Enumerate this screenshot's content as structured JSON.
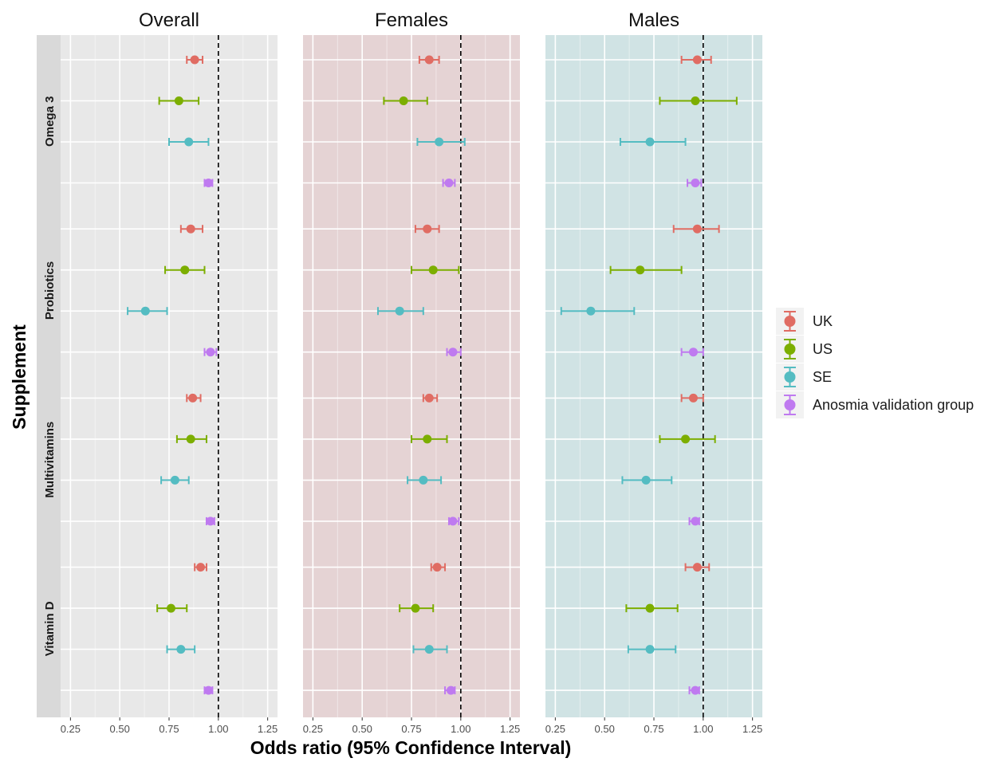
{
  "chart_data": {
    "type": "forest",
    "xlabel": "Odds ratio (95% Confidence Interval)",
    "ylabel": "Supplement",
    "xlim": [
      0.2,
      1.3
    ],
    "x_ticks": [
      0.25,
      0.5,
      0.75,
      1.0,
      1.25
    ],
    "x_tick_labels": [
      "0.25",
      "0.50",
      "0.75",
      "1.00",
      "1.25"
    ],
    "reference_line": 1.0,
    "panels": [
      {
        "name": "Overall",
        "background": "#e8e8e8"
      },
      {
        "name": "Females",
        "background": "#e5d3d4"
      },
      {
        "name": "Males",
        "background": "#d0e3e4"
      }
    ],
    "groups": [
      "Omega 3",
      "Probiotics",
      "Multivitamins",
      "Vitamin D"
    ],
    "series": [
      {
        "name": "UK",
        "color": "#E06C63"
      },
      {
        "name": "US",
        "color": "#7CAE00"
      },
      {
        "name": "SE",
        "color": "#54BCC2"
      },
      {
        "name": "Anosmia validation group",
        "color": "#BF7AF0"
      }
    ],
    "legend_position": "right",
    "data": [
      {
        "panel": "Overall",
        "group": "Omega 3",
        "series": "UK",
        "or": 0.88,
        "lo": 0.84,
        "hi": 0.92
      },
      {
        "panel": "Overall",
        "group": "Omega 3",
        "series": "US",
        "or": 0.8,
        "lo": 0.7,
        "hi": 0.9
      },
      {
        "panel": "Overall",
        "group": "Omega 3",
        "series": "SE",
        "or": 0.85,
        "lo": 0.75,
        "hi": 0.95
      },
      {
        "panel": "Overall",
        "group": "Omega 3",
        "series": "Anosmia validation group",
        "or": 0.95,
        "lo": 0.93,
        "hi": 0.97
      },
      {
        "panel": "Overall",
        "group": "Probiotics",
        "series": "UK",
        "or": 0.86,
        "lo": 0.81,
        "hi": 0.92
      },
      {
        "panel": "Overall",
        "group": "Probiotics",
        "series": "US",
        "or": 0.83,
        "lo": 0.73,
        "hi": 0.93
      },
      {
        "panel": "Overall",
        "group": "Probiotics",
        "series": "SE",
        "or": 0.63,
        "lo": 0.54,
        "hi": 0.74
      },
      {
        "panel": "Overall",
        "group": "Probiotics",
        "series": "Anosmia validation group",
        "or": 0.96,
        "lo": 0.93,
        "hi": 0.99
      },
      {
        "panel": "Overall",
        "group": "Multivitamins",
        "series": "UK",
        "or": 0.87,
        "lo": 0.84,
        "hi": 0.91
      },
      {
        "panel": "Overall",
        "group": "Multivitamins",
        "series": "US",
        "or": 0.86,
        "lo": 0.79,
        "hi": 0.94
      },
      {
        "panel": "Overall",
        "group": "Multivitamins",
        "series": "SE",
        "or": 0.78,
        "lo": 0.71,
        "hi": 0.85
      },
      {
        "panel": "Overall",
        "group": "Multivitamins",
        "series": "Anosmia validation group",
        "or": 0.96,
        "lo": 0.94,
        "hi": 0.98
      },
      {
        "panel": "Overall",
        "group": "Vitamin D",
        "series": "UK",
        "or": 0.91,
        "lo": 0.88,
        "hi": 0.94
      },
      {
        "panel": "Overall",
        "group": "Vitamin D",
        "series": "US",
        "or": 0.76,
        "lo": 0.69,
        "hi": 0.84
      },
      {
        "panel": "Overall",
        "group": "Vitamin D",
        "series": "SE",
        "or": 0.81,
        "lo": 0.74,
        "hi": 0.88
      },
      {
        "panel": "Overall",
        "group": "Vitamin D",
        "series": "Anosmia validation group",
        "or": 0.95,
        "lo": 0.93,
        "hi": 0.97
      },
      {
        "panel": "Females",
        "group": "Omega 3",
        "series": "UK",
        "or": 0.84,
        "lo": 0.79,
        "hi": 0.89
      },
      {
        "panel": "Females",
        "group": "Omega 3",
        "series": "US",
        "or": 0.71,
        "lo": 0.61,
        "hi": 0.83
      },
      {
        "panel": "Females",
        "group": "Omega 3",
        "series": "SE",
        "or": 0.89,
        "lo": 0.78,
        "hi": 1.02
      },
      {
        "panel": "Females",
        "group": "Omega 3",
        "series": "Anosmia validation group",
        "or": 0.94,
        "lo": 0.91,
        "hi": 0.97
      },
      {
        "panel": "Females",
        "group": "Probiotics",
        "series": "UK",
        "or": 0.83,
        "lo": 0.77,
        "hi": 0.89
      },
      {
        "panel": "Females",
        "group": "Probiotics",
        "series": "US",
        "or": 0.86,
        "lo": 0.75,
        "hi": 0.99
      },
      {
        "panel": "Females",
        "group": "Probiotics",
        "series": "SE",
        "or": 0.69,
        "lo": 0.58,
        "hi": 0.81
      },
      {
        "panel": "Females",
        "group": "Probiotics",
        "series": "Anosmia validation group",
        "or": 0.96,
        "lo": 0.93,
        "hi": 1.0
      },
      {
        "panel": "Females",
        "group": "Multivitamins",
        "series": "UK",
        "or": 0.84,
        "lo": 0.81,
        "hi": 0.88
      },
      {
        "panel": "Females",
        "group": "Multivitamins",
        "series": "US",
        "or": 0.83,
        "lo": 0.75,
        "hi": 0.93
      },
      {
        "panel": "Females",
        "group": "Multivitamins",
        "series": "SE",
        "or": 0.81,
        "lo": 0.73,
        "hi": 0.9
      },
      {
        "panel": "Females",
        "group": "Multivitamins",
        "series": "Anosmia validation group",
        "or": 0.96,
        "lo": 0.94,
        "hi": 0.99
      },
      {
        "panel": "Females",
        "group": "Vitamin D",
        "series": "UK",
        "or": 0.88,
        "lo": 0.85,
        "hi": 0.92
      },
      {
        "panel": "Females",
        "group": "Vitamin D",
        "series": "US",
        "or": 0.77,
        "lo": 0.69,
        "hi": 0.86
      },
      {
        "panel": "Females",
        "group": "Vitamin D",
        "series": "SE",
        "or": 0.84,
        "lo": 0.76,
        "hi": 0.93
      },
      {
        "panel": "Females",
        "group": "Vitamin D",
        "series": "Anosmia validation group",
        "or": 0.95,
        "lo": 0.92,
        "hi": 0.97
      },
      {
        "panel": "Males",
        "group": "Omega 3",
        "series": "UK",
        "or": 0.97,
        "lo": 0.89,
        "hi": 1.04
      },
      {
        "panel": "Males",
        "group": "Omega 3",
        "series": "US",
        "or": 0.96,
        "lo": 0.78,
        "hi": 1.17
      },
      {
        "panel": "Males",
        "group": "Omega 3",
        "series": "SE",
        "or": 0.73,
        "lo": 0.58,
        "hi": 0.91
      },
      {
        "panel": "Males",
        "group": "Omega 3",
        "series": "Anosmia validation group",
        "or": 0.96,
        "lo": 0.92,
        "hi": 0.99
      },
      {
        "panel": "Males",
        "group": "Probiotics",
        "series": "UK",
        "or": 0.97,
        "lo": 0.85,
        "hi": 1.08
      },
      {
        "panel": "Males",
        "group": "Probiotics",
        "series": "US",
        "or": 0.68,
        "lo": 0.53,
        "hi": 0.89
      },
      {
        "panel": "Males",
        "group": "Probiotics",
        "series": "SE",
        "or": 0.43,
        "lo": 0.28,
        "hi": 0.65
      },
      {
        "panel": "Males",
        "group": "Probiotics",
        "series": "Anosmia validation group",
        "or": 0.95,
        "lo": 0.89,
        "hi": 1.0
      },
      {
        "panel": "Males",
        "group": "Multivitamins",
        "series": "UK",
        "or": 0.95,
        "lo": 0.89,
        "hi": 1.0
      },
      {
        "panel": "Males",
        "group": "Multivitamins",
        "series": "US",
        "or": 0.91,
        "lo": 0.78,
        "hi": 1.06
      },
      {
        "panel": "Males",
        "group": "Multivitamins",
        "series": "SE",
        "or": 0.71,
        "lo": 0.59,
        "hi": 0.84
      },
      {
        "panel": "Males",
        "group": "Multivitamins",
        "series": "Anosmia validation group",
        "or": 0.96,
        "lo": 0.93,
        "hi": 0.98
      },
      {
        "panel": "Males",
        "group": "Vitamin D",
        "series": "UK",
        "or": 0.97,
        "lo": 0.91,
        "hi": 1.03
      },
      {
        "panel": "Males",
        "group": "Vitamin D",
        "series": "US",
        "or": 0.73,
        "lo": 0.61,
        "hi": 0.87
      },
      {
        "panel": "Males",
        "group": "Vitamin D",
        "series": "SE",
        "or": 0.73,
        "lo": 0.62,
        "hi": 0.86
      },
      {
        "panel": "Males",
        "group": "Vitamin D",
        "series": "Anosmia validation group",
        "or": 0.96,
        "lo": 0.93,
        "hi": 0.98
      }
    ]
  }
}
